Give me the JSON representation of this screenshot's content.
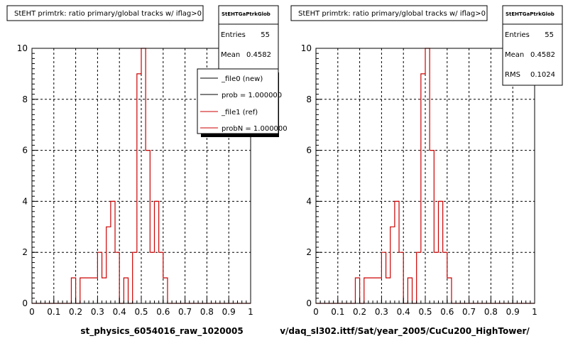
{
  "colors": {
    "hist": "#cc0000",
    "legend_new": "#000000",
    "legend_ref": "#cc0000"
  },
  "chart_data": [
    {
      "type": "bar",
      "title": "StEHT primtrk: ratio primary/global tracks w/ iflag>0",
      "xlabel": "st_physics_6054016_raw_1020005",
      "xlim": [
        0,
        1
      ],
      "ylim": [
        0,
        10
      ],
      "xticks": [
        "0",
        "0.1",
        "0.2",
        "0.3",
        "0.4",
        "0.5",
        "0.6",
        "0.7",
        "0.8",
        "0.9",
        "1"
      ],
      "yticks": [
        "0",
        "2",
        "4",
        "6",
        "8",
        "10"
      ],
      "grid": true,
      "bin_width": 0.02,
      "bins": [
        {
          "x": 0.18,
          "y": 1
        },
        {
          "x": 0.2,
          "y": 0
        },
        {
          "x": 0.22,
          "y": 1
        },
        {
          "x": 0.24,
          "y": 1
        },
        {
          "x": 0.26,
          "y": 1
        },
        {
          "x": 0.28,
          "y": 1
        },
        {
          "x": 0.3,
          "y": 2
        },
        {
          "x": 0.32,
          "y": 1
        },
        {
          "x": 0.34,
          "y": 3
        },
        {
          "x": 0.36,
          "y": 4
        },
        {
          "x": 0.38,
          "y": 2
        },
        {
          "x": 0.4,
          "y": 0
        },
        {
          "x": 0.42,
          "y": 1
        },
        {
          "x": 0.44,
          "y": 0
        },
        {
          "x": 0.46,
          "y": 2
        },
        {
          "x": 0.48,
          "y": 9
        },
        {
          "x": 0.5,
          "y": 10
        },
        {
          "x": 0.52,
          "y": 6
        },
        {
          "x": 0.54,
          "y": 2
        },
        {
          "x": 0.56,
          "y": 4
        },
        {
          "x": 0.58,
          "y": 2
        },
        {
          "x": 0.6,
          "y": 1
        }
      ],
      "stats": {
        "header": "StEHTGaPtrkGlob",
        "entries_label": "Entries",
        "entries": "55",
        "mean_label": "Mean",
        "mean": "0.4582"
      },
      "legend": {
        "placement": "top-right",
        "entries": [
          "_file0 (new)",
          "prob = 1.000000",
          "_file1 (ref)",
          "probN = 1.000000"
        ]
      }
    },
    {
      "type": "bar",
      "title": "StEHT primtrk: ratio primary/global tracks w/ iflag>0",
      "xlabel": "v/daq_sl302.ittf/Sat/year_2005/CuCu200_HighTower/",
      "xlim": [
        0,
        1
      ],
      "ylim": [
        0,
        10
      ],
      "xticks": [
        "0",
        "0.1",
        "0.2",
        "0.3",
        "0.4",
        "0.5",
        "0.6",
        "0.7",
        "0.8",
        "0.9",
        "1"
      ],
      "yticks": [
        "0",
        "2",
        "4",
        "6",
        "8",
        "10"
      ],
      "grid": true,
      "bin_width": 0.02,
      "bins": [
        {
          "x": 0.18,
          "y": 1
        },
        {
          "x": 0.2,
          "y": 0
        },
        {
          "x": 0.22,
          "y": 1
        },
        {
          "x": 0.24,
          "y": 1
        },
        {
          "x": 0.26,
          "y": 1
        },
        {
          "x": 0.28,
          "y": 1
        },
        {
          "x": 0.3,
          "y": 2
        },
        {
          "x": 0.32,
          "y": 1
        },
        {
          "x": 0.34,
          "y": 3
        },
        {
          "x": 0.36,
          "y": 4
        },
        {
          "x": 0.38,
          "y": 2
        },
        {
          "x": 0.4,
          "y": 0
        },
        {
          "x": 0.42,
          "y": 1
        },
        {
          "x": 0.44,
          "y": 0
        },
        {
          "x": 0.46,
          "y": 2
        },
        {
          "x": 0.48,
          "y": 9
        },
        {
          "x": 0.5,
          "y": 10
        },
        {
          "x": 0.52,
          "y": 6
        },
        {
          "x": 0.54,
          "y": 2
        },
        {
          "x": 0.56,
          "y": 4
        },
        {
          "x": 0.58,
          "y": 2
        },
        {
          "x": 0.6,
          "y": 1
        }
      ],
      "stats": {
        "header": "StEHTGaPtrkGlob",
        "entries_label": "Entries",
        "entries": "55",
        "mean_label": "Mean",
        "mean": "0.4582",
        "rms_label": "RMS",
        "rms": "0.1024"
      }
    }
  ]
}
